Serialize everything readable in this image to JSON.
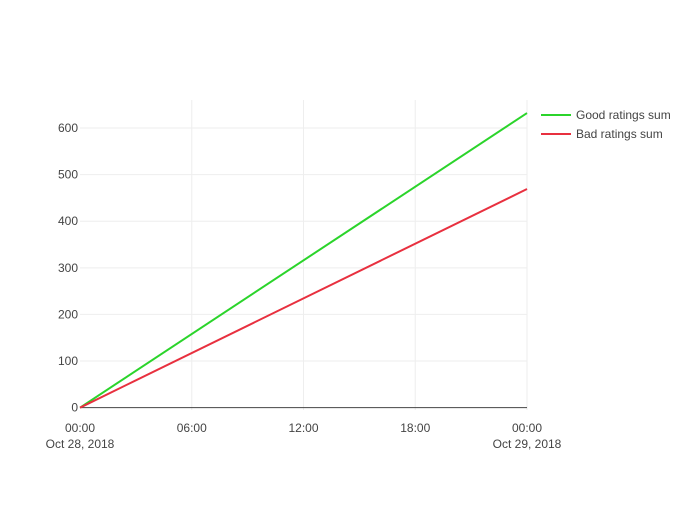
{
  "chart_data": {
    "type": "line",
    "title": "",
    "xlabel": "",
    "ylabel": "",
    "x": [
      "2018-10-28 00:00",
      "2018-10-29 00:00"
    ],
    "series": [
      {
        "name": "Good ratings sum",
        "color": "#2bd42b",
        "values": [
          0,
          632
        ]
      },
      {
        "name": "Bad ratings sum",
        "color": "#e8303f",
        "values": [
          0,
          469
        ]
      }
    ],
    "ylim": [
      -5,
      660
    ],
    "xlim": [
      "2018-10-28 00:00",
      "2018-10-29 00:00"
    ],
    "y_ticks": [
      0,
      100,
      200,
      300,
      400,
      500,
      600
    ],
    "x_ticks": [
      {
        "value": "2018-10-28 00:00",
        "label": "00:00",
        "sublabel": "Oct 28, 2018"
      },
      {
        "value": "2018-10-28 06:00",
        "label": "06:00",
        "sublabel": ""
      },
      {
        "value": "2018-10-28 12:00",
        "label": "12:00",
        "sublabel": ""
      },
      {
        "value": "2018-10-28 18:00",
        "label": "18:00",
        "sublabel": ""
      },
      {
        "value": "2018-10-29 00:00",
        "label": "00:00",
        "sublabel": "Oct 29, 2018"
      }
    ],
    "grid": true,
    "legend_position": "top-right"
  }
}
